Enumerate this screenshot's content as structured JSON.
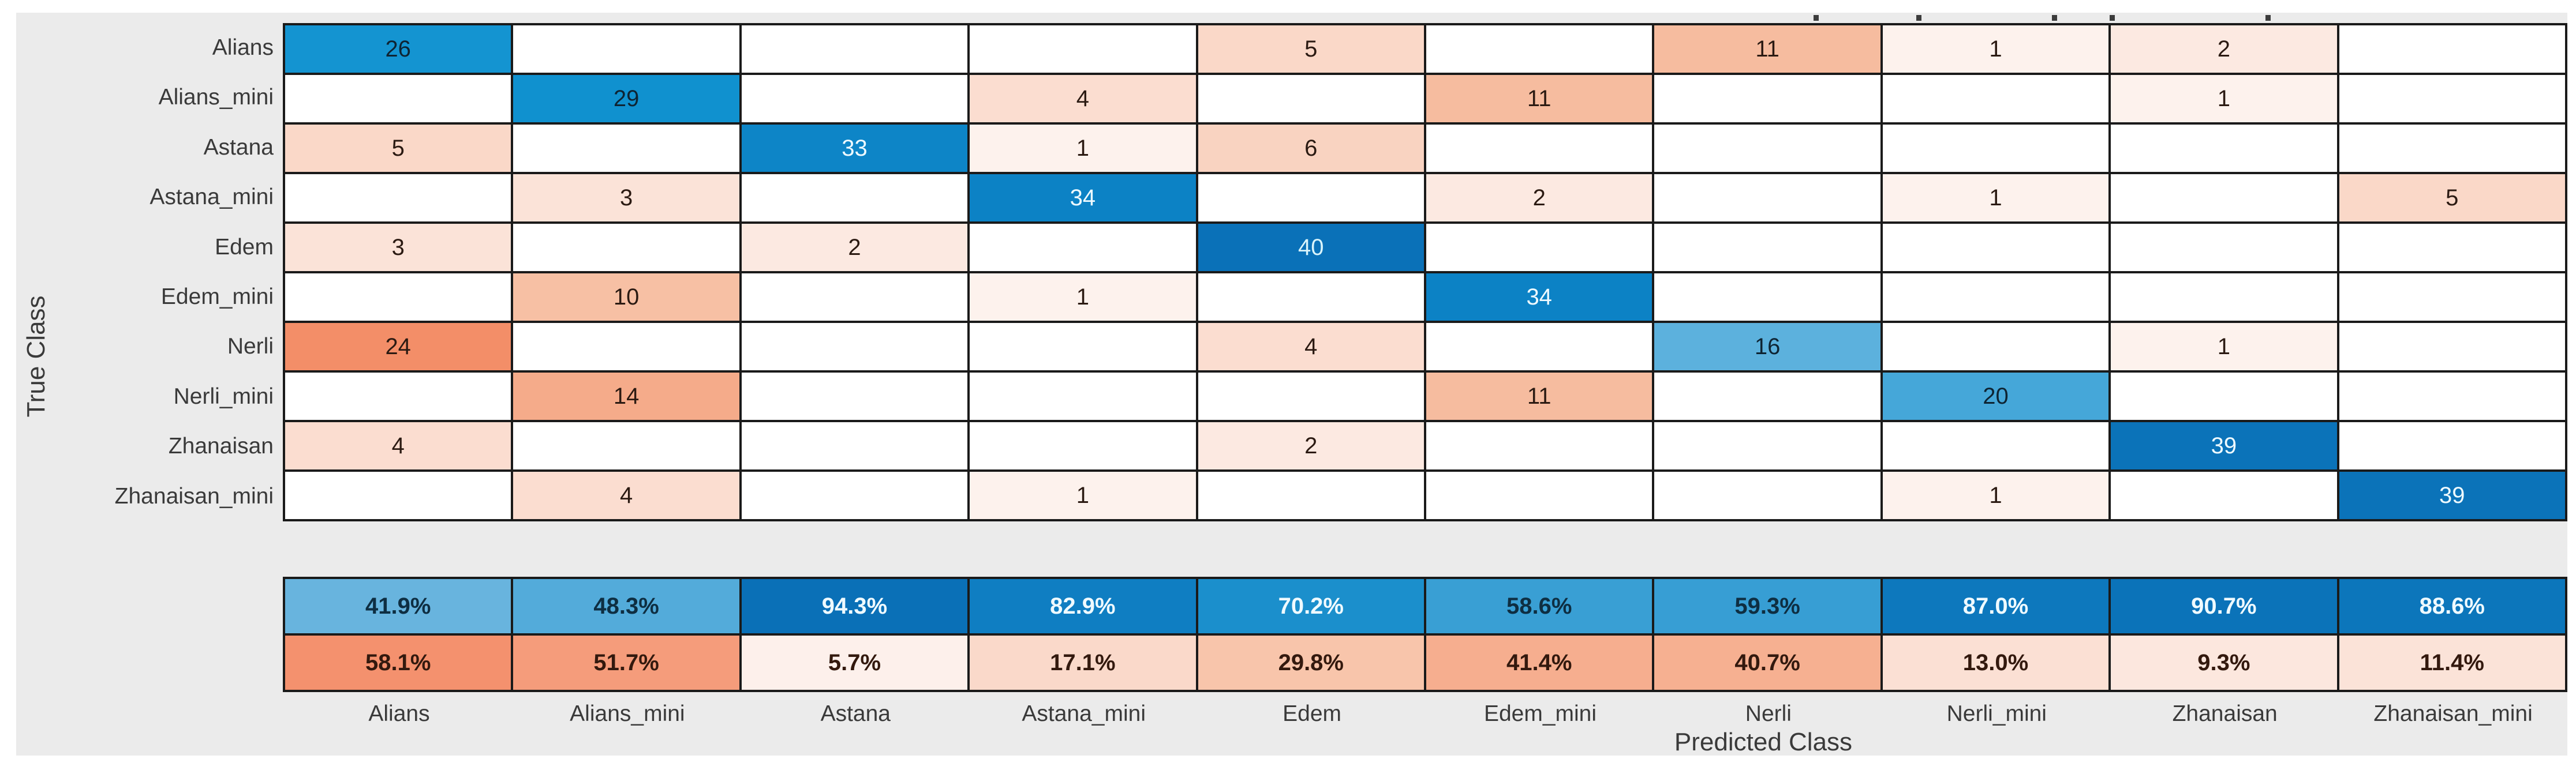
{
  "figure": {
    "panel_background": "#ebebeb",
    "grid_line_color": "#1a1a1a",
    "empty_cell_color": "#ffffff"
  },
  "chart_data": {
    "type": "heatmap",
    "subtype": "confusion-matrix",
    "title": "",
    "xlabel": "Predicted Class",
    "ylabel": "True Class",
    "classes": [
      "Alians",
      "Alians_mini",
      "Astana",
      "Astana_mini",
      "Edem",
      "Edem_mini",
      "Nerli",
      "Nerli_mini",
      "Zhanaisan",
      "Zhanaisan_mini"
    ],
    "matrix": [
      [
        26,
        0,
        0,
        0,
        5,
        0,
        11,
        1,
        2,
        0
      ],
      [
        0,
        29,
        0,
        4,
        0,
        11,
        0,
        0,
        1,
        0
      ],
      [
        5,
        0,
        33,
        1,
        6,
        0,
        0,
        0,
        0,
        0
      ],
      [
        0,
        3,
        0,
        34,
        0,
        2,
        0,
        1,
        0,
        5
      ],
      [
        3,
        0,
        2,
        0,
        40,
        0,
        0,
        0,
        0,
        0
      ],
      [
        0,
        10,
        0,
        1,
        0,
        34,
        0,
        0,
        0,
        0
      ],
      [
        24,
        0,
        0,
        0,
        4,
        0,
        16,
        0,
        1,
        0
      ],
      [
        0,
        14,
        0,
        0,
        0,
        11,
        0,
        20,
        0,
        0
      ],
      [
        4,
        0,
        0,
        0,
        2,
        0,
        0,
        0,
        39,
        0
      ],
      [
        0,
        4,
        0,
        1,
        0,
        0,
        0,
        1,
        0,
        39
      ]
    ],
    "column_summary_correct": [
      "41.9%",
      "48.3%",
      "94.3%",
      "82.9%",
      "70.2%",
      "58.6%",
      "59.3%",
      "87.0%",
      "90.7%",
      "88.6%"
    ],
    "column_summary_incorrect": [
      "58.1%",
      "51.7%",
      "5.7%",
      "17.1%",
      "29.8%",
      "41.4%",
      "40.7%",
      "13.0%",
      "9.3%",
      "11.4%"
    ],
    "legend_position": "none",
    "grid": "on",
    "diagonal_cell_styles": [
      {
        "bg": "#1494d1",
        "fg": "#0e2433"
      },
      {
        "bg": "#1091cf",
        "fg": "#0e2433"
      },
      {
        "bg": "#0d85c7",
        "fg": "#eefaff"
      },
      {
        "bg": "#0c82c5",
        "fg": "#eefaff"
      },
      {
        "bg": "#0a71b8",
        "fg": "#d9f4fb"
      },
      {
        "bg": "#0c82c5",
        "fg": "#eefaff"
      },
      {
        "bg": "#5cb1dd",
        "fg": "#0e2433"
      },
      {
        "bg": "#45a7d9",
        "fg": "#0e2433"
      },
      {
        "bg": "#0b73b9",
        "fg": "#eefaff"
      },
      {
        "bg": "#0b73b9",
        "fg": "#eefaff"
      }
    ],
    "offdiagonal_color_by_value": {
      "1": "#fdf2ed",
      "2": "#fce9e1",
      "3": "#fbe3d8",
      "4": "#fbddd0",
      "5": "#fad8c8",
      "6": "#f9d3c1",
      "10": "#f7c0a4",
      "11": "#f6bc9f",
      "14": "#f5ab8a",
      "24": "#f38e68"
    },
    "offdiagonal_text_color": "#2b1a12",
    "summary_correct_styles": {
      "41.9%": {
        "bg": "#68b4de",
        "fg": "#0e2e42"
      },
      "48.3%": {
        "bg": "#53abda",
        "fg": "#0e2e42"
      },
      "94.3%": {
        "bg": "#0a70b7",
        "fg": "#effaff"
      },
      "82.9%": {
        "bg": "#0f7ec2",
        "fg": "#effaff"
      },
      "70.2%": {
        "bg": "#1b8fcc",
        "fg": "#effaff"
      },
      "58.6%": {
        "bg": "#399fd4",
        "fg": "#0e2e42"
      },
      "59.3%": {
        "bg": "#379ed4",
        "fg": "#0e2e42"
      },
      "87.0%": {
        "bg": "#0d78bd",
        "fg": "#effaff"
      },
      "90.7%": {
        "bg": "#0b73b9",
        "fg": "#effaff"
      },
      "88.6%": {
        "bg": "#0c76bb",
        "fg": "#effaff"
      }
    },
    "summary_incorrect_styles": {
      "58.1%": {
        "bg": "#f4916e",
        "fg": "#33190e"
      },
      "51.7%": {
        "bg": "#f59c7b",
        "fg": "#33190e"
      },
      "5.7%": {
        "bg": "#fdf0eb",
        "fg": "#33190e"
      },
      "17.1%": {
        "bg": "#fad9ca",
        "fg": "#33190e"
      },
      "29.8%": {
        "bg": "#f8c5ab",
        "fg": "#33190e"
      },
      "41.4%": {
        "bg": "#f6ae8f",
        "fg": "#33190e"
      },
      "40.7%": {
        "bg": "#f6b091",
        "fg": "#33190e"
      },
      "13.0%": {
        "bg": "#fbe0d4",
        "fg": "#33190e"
      },
      "9.3%": {
        "bg": "#fce7de",
        "fg": "#33190e"
      },
      "11.4%": {
        "bg": "#fbe3d8",
        "fg": "#33190e"
      }
    },
    "cropped_title_marks_x": [
      3142,
      3320,
      3555,
      3655,
      3925
    ]
  }
}
